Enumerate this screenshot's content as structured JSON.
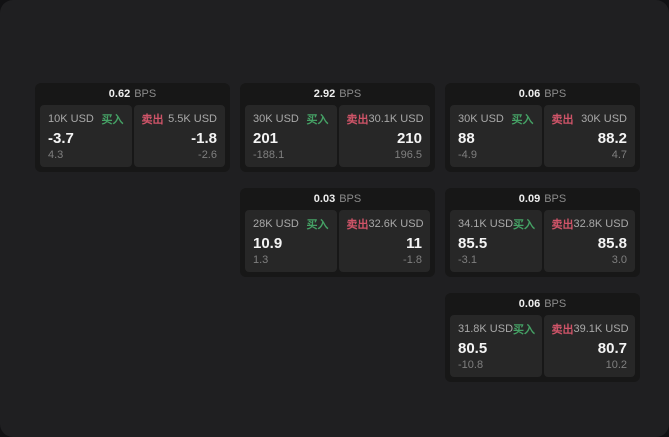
{
  "labels": {
    "bps_unit": "BPS",
    "buy": "买入",
    "sell": "卖出"
  },
  "colors": {
    "backdrop": "#111113",
    "window_bg": "#1f1f21",
    "card_bg": "#171717",
    "panel_bg": "#272727",
    "buy": "#45a165",
    "sell": "#cf5468"
  },
  "cards": [
    {
      "bps": "0.62",
      "buy": {
        "amount": "10K USD",
        "price": "-3.7",
        "delta": "4.3"
      },
      "sell": {
        "amount": "5.5K USD",
        "price": "-1.8",
        "delta": "-2.6"
      }
    },
    {
      "bps": "2.92",
      "buy": {
        "amount": "30K USD",
        "price": "201",
        "delta": "-188.1"
      },
      "sell": {
        "amount": "30.1K USD",
        "price": "210",
        "delta": "196.5"
      }
    },
    {
      "bps": "0.06",
      "buy": {
        "amount": "30K USD",
        "price": "88",
        "delta": "-4.9"
      },
      "sell": {
        "amount": "30K USD",
        "price": "88.2",
        "delta": "4.7"
      }
    },
    {
      "bps": "0.03",
      "buy": {
        "amount": "28K USD",
        "price": "10.9",
        "delta": "1.3"
      },
      "sell": {
        "amount": "32.6K USD",
        "price": "11",
        "delta": "-1.8"
      }
    },
    {
      "bps": "0.09",
      "buy": {
        "amount": "34.1K USD",
        "price": "85.5",
        "delta": "-3.1"
      },
      "sell": {
        "amount": "32.8K USD",
        "price": "85.8",
        "delta": "3.0"
      }
    },
    {
      "bps": "0.06",
      "buy": {
        "amount": "31.8K USD",
        "price": "80.5",
        "delta": "-10.8"
      },
      "sell": {
        "amount": "39.1K USD",
        "price": "80.7",
        "delta": "10.2"
      }
    }
  ]
}
